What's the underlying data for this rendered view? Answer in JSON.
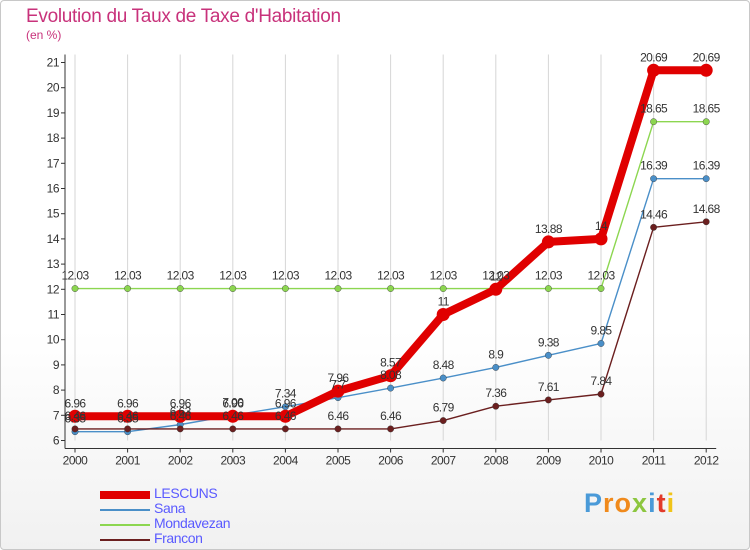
{
  "title": "Evolution du Taux de Taxe d'Habitation",
  "unit_label": "(en %)",
  "logo": {
    "text": "Proxiti",
    "letters": [
      {
        "ch": "P",
        "color": "#4a9ad8"
      },
      {
        "ch": "r",
        "color": "#f08a1c"
      },
      {
        "ch": "o",
        "color": "#f08a1c"
      },
      {
        "ch": "x",
        "color": "#8cc63f"
      },
      {
        "ch": "i",
        "color": "#4a9ad8"
      },
      {
        "ch": "t",
        "color": "#e23a2a"
      },
      {
        "ch": "i",
        "color": "#f0c419"
      }
    ]
  },
  "chart_data": {
    "type": "line",
    "title": "Evolution du Taux de Taxe d'Habitation",
    "ylabel": "(en %)",
    "xlabel": "",
    "ylim": [
      6,
      21
    ],
    "yticks": [
      6,
      7,
      8,
      9,
      10,
      11,
      12,
      13,
      14,
      15,
      16,
      17,
      18,
      19,
      20,
      21
    ],
    "grid": "vertical",
    "legend_position": "bottom-left",
    "x": [
      "2000",
      "2001",
      "2002",
      "2003",
      "2004",
      "2005",
      "2006",
      "2007",
      "2008",
      "2009",
      "2010",
      "2011",
      "2012"
    ],
    "series": [
      {
        "name": "LESCUNS",
        "color": "#e00000",
        "emphasis": true,
        "values": [
          6.96,
          6.96,
          6.96,
          6.96,
          6.96,
          7.96,
          8.57,
          11,
          12,
          13.88,
          14,
          20.69,
          20.69
        ],
        "labels": [
          "6.96",
          "6.96",
          "6.96",
          "6.96",
          "6.96",
          "7.96",
          "8.57",
          "11",
          "12",
          "13.88",
          "14",
          "20.69",
          "20.69"
        ]
      },
      {
        "name": "Sana",
        "color": "#4a8fc8",
        "values": [
          6.35,
          6.35,
          6.63,
          7.0,
          7.34,
          7.7,
          8.08,
          8.48,
          8.9,
          9.38,
          9.85,
          16.39,
          16.39
        ],
        "labels": [
          "6.35",
          "6.35",
          "6.63",
          "7.00",
          "7.34",
          "7.7",
          "8.08",
          "8.48",
          "8.9",
          "9.38",
          "9.85",
          "16.39",
          "16.39"
        ]
      },
      {
        "name": "Mondavezan",
        "color": "#8cd650",
        "values": [
          12.03,
          12.03,
          12.03,
          12.03,
          12.03,
          12.03,
          12.03,
          12.03,
          12.03,
          12.03,
          12.03,
          18.65,
          18.65
        ],
        "labels": [
          "12.03",
          "12.03",
          "12.03",
          "12.03",
          "12.03",
          "12.03",
          "12.03",
          "12.03",
          "12.03",
          "12.03",
          "12.03",
          "18.65",
          "18.65"
        ]
      },
      {
        "name": "Francon",
        "color": "#6b1f1f",
        "values": [
          6.46,
          6.46,
          6.46,
          6.46,
          6.46,
          6.46,
          6.46,
          6.79,
          7.36,
          7.61,
          7.84,
          14.46,
          14.68
        ],
        "labels": [
          "6.46",
          "6.46",
          "6.46",
          "6.46",
          "6.46",
          "6.46",
          "6.46",
          "6.79",
          "7.36",
          "7.61",
          "7.84",
          "14.46",
          "14.68"
        ]
      }
    ]
  }
}
